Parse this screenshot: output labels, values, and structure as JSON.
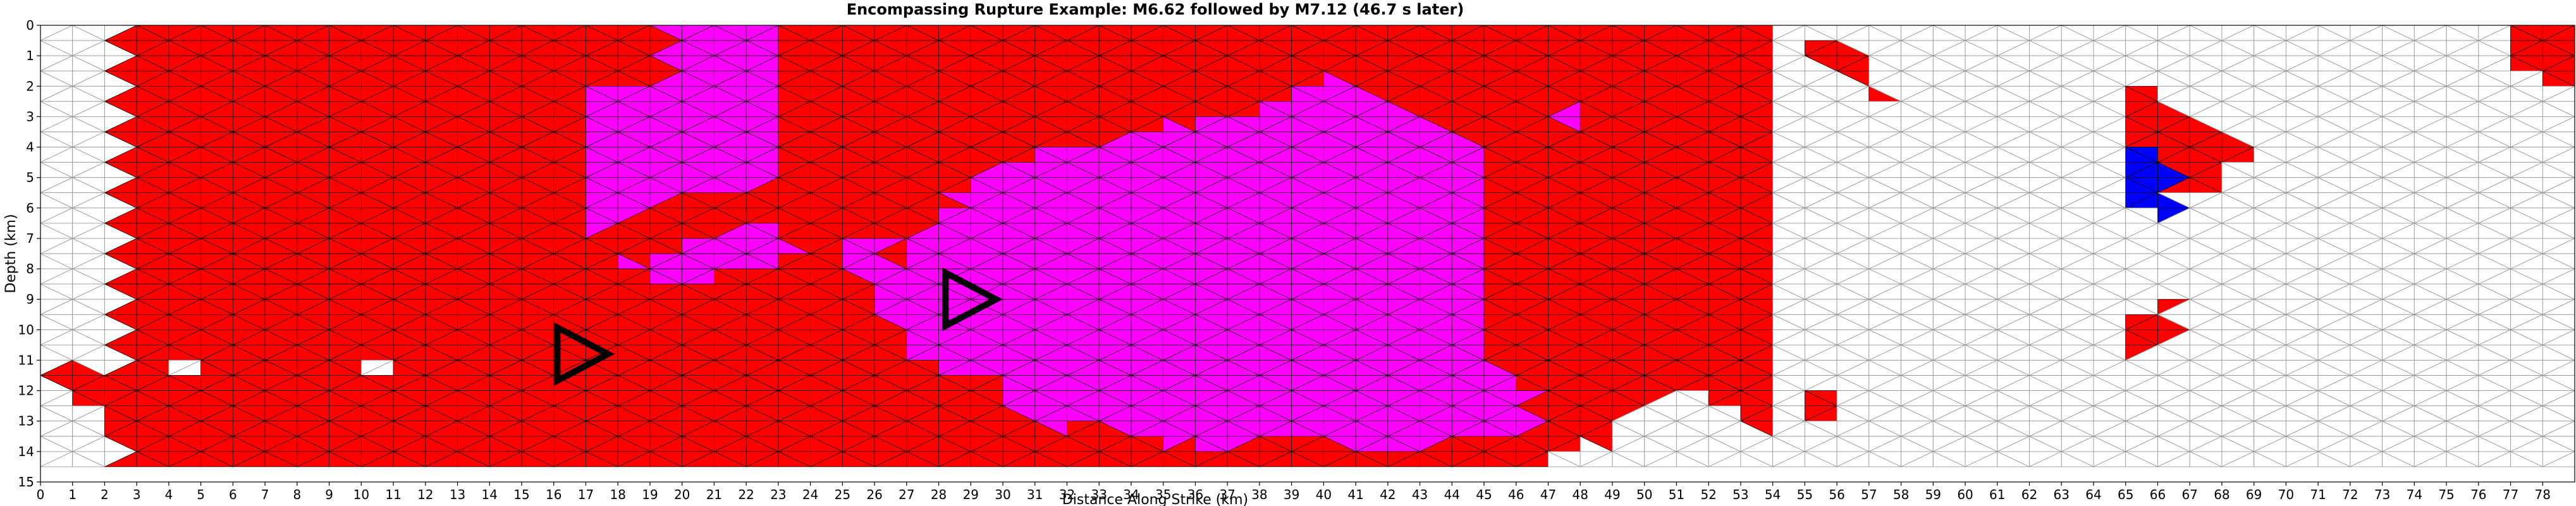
{
  "chart_data": {
    "type": "heatmap",
    "title": "Encompassing Rupture Example: M6.62 followed by M7.12 (46.7 s later)",
    "xlabel": "Distance Along Strike (km)",
    "ylabel": "Depth (km)",
    "xlim": [
      0,
      79
    ],
    "ylim": [
      15,
      0
    ],
    "xticks": [
      0,
      1,
      2,
      3,
      4,
      5,
      6,
      7,
      8,
      9,
      10,
      11,
      12,
      13,
      14,
      15,
      16,
      17,
      18,
      19,
      20,
      21,
      22,
      23,
      24,
      25,
      26,
      27,
      28,
      29,
      30,
      31,
      32,
      33,
      34,
      35,
      36,
      37,
      38,
      39,
      40,
      41,
      42,
      43,
      44,
      45,
      46,
      47,
      48,
      49,
      50,
      51,
      52,
      53,
      54,
      55,
      56,
      57,
      58,
      59,
      60,
      61,
      62,
      63,
      64,
      65,
      66,
      67,
      68,
      69,
      70,
      71,
      72,
      73,
      74,
      75,
      76,
      77,
      78
    ],
    "yticks": [
      0,
      1,
      2,
      3,
      4,
      5,
      6,
      7,
      8,
      9,
      10,
      11,
      12,
      13,
      14,
      15
    ],
    "colors": {
      "first_event": "#ff0000",
      "second_event": "#ff00ff",
      "other": "#0000ff",
      "unruptured": "#ffffff",
      "mesh_edge": "#999999",
      "ruptured_edge": "#000000"
    },
    "grid": "triangular fault mesh",
    "hypocenters": [
      {
        "x": 16.9,
        "y": 10.8,
        "orientation": "right"
      },
      {
        "x": 29.0,
        "y": 9.0,
        "orientation": "right"
      }
    ]
  }
}
